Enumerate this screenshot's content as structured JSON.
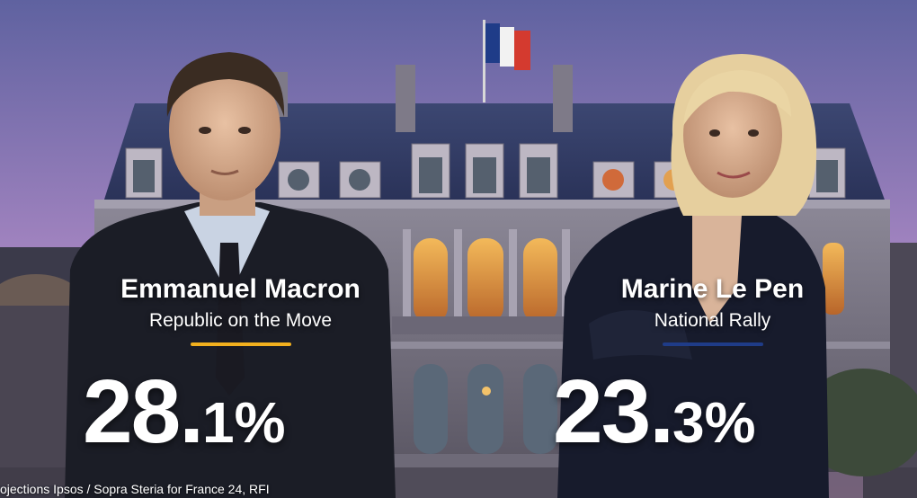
{
  "colors": {
    "macron_accent": "#f2b01e",
    "lepen_accent": "#1f3c88",
    "sky_top": "#6b6ea8",
    "sky_bottom": "#b88bc6"
  },
  "candidates": [
    {
      "name": "Emmanuel Macron",
      "party": "Republic on the Move",
      "percent_main": "28.",
      "percent_decimal": "1",
      "percent_symbol": "%"
    },
    {
      "name": "Marine Le Pen",
      "party": "National Rally",
      "percent_main": "23.",
      "percent_decimal": "3",
      "percent_symbol": "%"
    }
  ],
  "source_text": "ojections Ipsos / Sopra Steria for France 24, RFI"
}
